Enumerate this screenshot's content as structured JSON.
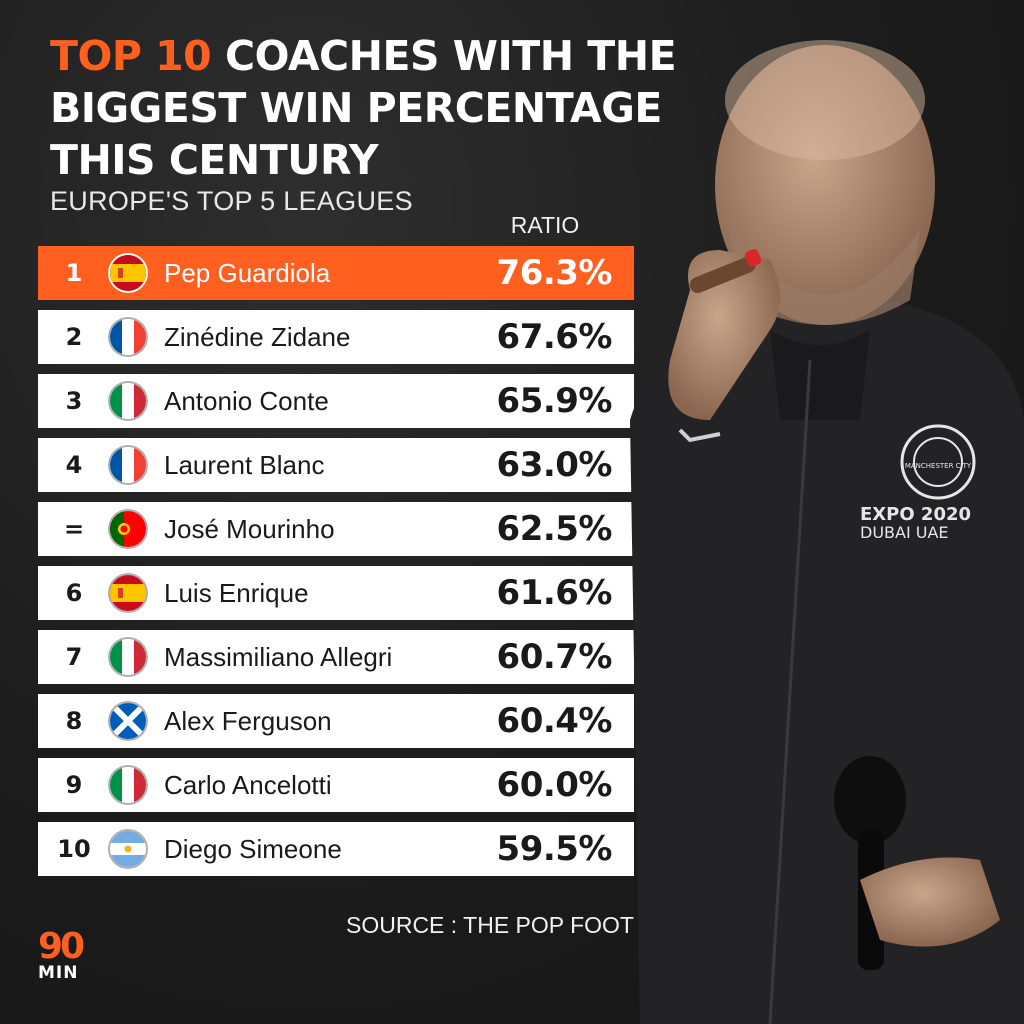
{
  "header": {
    "title_accent": "TOP 10",
    "title_rest": " COACHES WITH THE BIGGEST WIN PERCENTAGE THIS CENTURY",
    "subtitle": "EUROPE'S TOP 5 LEAGUES",
    "column_label": "RATIO"
  },
  "chart_data": {
    "type": "table",
    "title": "TOP 10 COACHES WITH THE BIGGEST WIN PERCENTAGE THIS CENTURY",
    "subtitle": "EUROPE'S TOP 5 LEAGUES",
    "columns": [
      "",
      "",
      "RATIO"
    ],
    "rows": [
      {
        "rank": "1",
        "country": "spain",
        "name": "Pep Guardiola",
        "ratio": "76.3%",
        "value": 76.3
      },
      {
        "rank": "2",
        "country": "france",
        "name": "Zinédine Zidane",
        "ratio": "67.6%",
        "value": 67.6
      },
      {
        "rank": "3",
        "country": "italy",
        "name": "Antonio Conte",
        "ratio": "65.9%",
        "value": 65.9
      },
      {
        "rank": "4",
        "country": "france",
        "name": "Laurent Blanc",
        "ratio": "63.0%",
        "value": 63.0
      },
      {
        "rank": "=",
        "country": "portugal",
        "name": "José Mourinho",
        "ratio": "62.5%",
        "value": 62.5
      },
      {
        "rank": "6",
        "country": "spain",
        "name": "Luis Enrique",
        "ratio": "61.6%",
        "value": 61.6
      },
      {
        "rank": "7",
        "country": "italy",
        "name": "Massimiliano Allegri",
        "ratio": "60.7%",
        "value": 60.7
      },
      {
        "rank": "8",
        "country": "scotland",
        "name": "Alex Ferguson",
        "ratio": "60.4%",
        "value": 60.4
      },
      {
        "rank": "9",
        "country": "italy",
        "name": "Carlo Ancelotti",
        "ratio": "60.0%",
        "value": 60.0
      },
      {
        "rank": "10",
        "country": "argentina",
        "name": "Diego Simeone",
        "ratio": "59.5%",
        "value": 59.5
      }
    ],
    "highlight_color": "#ff5f1f"
  },
  "footer": {
    "source": "SOURCE : THE POP FOOT",
    "logo_number": "90",
    "logo_text": "MIN"
  },
  "photo": {
    "jacket_badge": "MANCHESTER CITY",
    "jacket_line1": "EXPO 2020",
    "jacket_line2": "DUBAI UAE"
  },
  "colors": {
    "accent": "#ff5f1f",
    "background": "#1c1c1c",
    "row": "#ffffff"
  }
}
